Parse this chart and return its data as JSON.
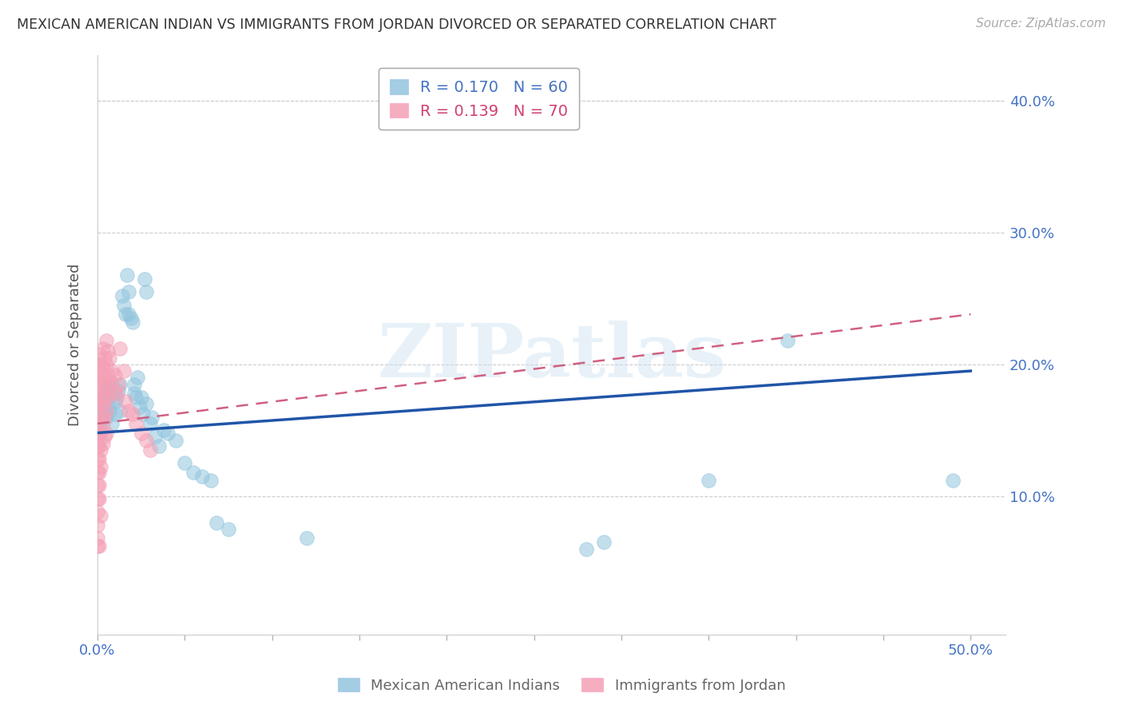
{
  "title": "MEXICAN AMERICAN INDIAN VS IMMIGRANTS FROM JORDAN DIVORCED OR SEPARATED CORRELATION CHART",
  "source": "Source: ZipAtlas.com",
  "ylabel": "Divorced or Separated",
  "xlim": [
    0.0,
    0.52
  ],
  "ylim": [
    -0.005,
    0.435
  ],
  "xtick_labels": [
    "0.0%",
    "",
    "",
    "",
    "",
    "",
    "",
    "",
    "",
    "",
    "50.0%"
  ],
  "xtick_vals": [
    0.0,
    0.05,
    0.1,
    0.15,
    0.2,
    0.25,
    0.3,
    0.35,
    0.4,
    0.45,
    0.5
  ],
  "yticks": [
    0.1,
    0.2,
    0.3,
    0.4
  ],
  "legend1_label": "R = 0.170   N = 60",
  "legend2_label": "R = 0.139   N = 70",
  "bottom_legend": [
    "Mexican American Indians",
    "Immigrants from Jordan"
  ],
  "watermark": "ZIPatlas",
  "blue_scatter": [
    [
      0.001,
      0.155
    ],
    [
      0.001,
      0.163
    ],
    [
      0.002,
      0.168
    ],
    [
      0.002,
      0.158
    ],
    [
      0.003,
      0.172
    ],
    [
      0.003,
      0.162
    ],
    [
      0.004,
      0.175
    ],
    [
      0.004,
      0.165
    ],
    [
      0.005,
      0.178
    ],
    [
      0.005,
      0.16
    ],
    [
      0.006,
      0.18
    ],
    [
      0.006,
      0.17
    ],
    [
      0.007,
      0.182
    ],
    [
      0.007,
      0.165
    ],
    [
      0.008,
      0.185
    ],
    [
      0.008,
      0.155
    ],
    [
      0.009,
      0.178
    ],
    [
      0.01,
      0.172
    ],
    [
      0.01,
      0.162
    ],
    [
      0.011,
      0.175
    ],
    [
      0.012,
      0.18
    ],
    [
      0.013,
      0.185
    ],
    [
      0.013,
      0.165
    ],
    [
      0.014,
      0.252
    ],
    [
      0.015,
      0.245
    ],
    [
      0.016,
      0.238
    ],
    [
      0.017,
      0.268
    ],
    [
      0.018,
      0.255
    ],
    [
      0.018,
      0.238
    ],
    [
      0.019,
      0.235
    ],
    [
      0.02,
      0.232
    ],
    [
      0.021,
      0.178
    ],
    [
      0.021,
      0.185
    ],
    [
      0.022,
      0.175
    ],
    [
      0.023,
      0.19
    ],
    [
      0.024,
      0.168
    ],
    [
      0.025,
      0.175
    ],
    [
      0.026,
      0.162
    ],
    [
      0.027,
      0.265
    ],
    [
      0.028,
      0.255
    ],
    [
      0.028,
      0.17
    ],
    [
      0.03,
      0.155
    ],
    [
      0.031,
      0.16
    ],
    [
      0.033,
      0.145
    ],
    [
      0.035,
      0.138
    ],
    [
      0.038,
      0.15
    ],
    [
      0.04,
      0.148
    ],
    [
      0.045,
      0.142
    ],
    [
      0.05,
      0.125
    ],
    [
      0.055,
      0.118
    ],
    [
      0.06,
      0.115
    ],
    [
      0.065,
      0.112
    ],
    [
      0.068,
      0.08
    ],
    [
      0.075,
      0.075
    ],
    [
      0.12,
      0.068
    ],
    [
      0.28,
      0.06
    ],
    [
      0.29,
      0.065
    ],
    [
      0.35,
      0.112
    ],
    [
      0.395,
      0.218
    ],
    [
      0.49,
      0.112
    ]
  ],
  "pink_scatter": [
    [
      0.0,
      0.2
    ],
    [
      0.0,
      0.19
    ],
    [
      0.0,
      0.18
    ],
    [
      0.0,
      0.17
    ],
    [
      0.0,
      0.158
    ],
    [
      0.0,
      0.148
    ],
    [
      0.0,
      0.138
    ],
    [
      0.0,
      0.128
    ],
    [
      0.0,
      0.118
    ],
    [
      0.0,
      0.108
    ],
    [
      0.0,
      0.098
    ],
    [
      0.0,
      0.088
    ],
    [
      0.0,
      0.078
    ],
    [
      0.0,
      0.068
    ],
    [
      0.001,
      0.208
    ],
    [
      0.001,
      0.195
    ],
    [
      0.001,
      0.182
    ],
    [
      0.001,
      0.17
    ],
    [
      0.001,
      0.158
    ],
    [
      0.001,
      0.148
    ],
    [
      0.001,
      0.138
    ],
    [
      0.001,
      0.128
    ],
    [
      0.001,
      0.118
    ],
    [
      0.001,
      0.108
    ],
    [
      0.001,
      0.098
    ],
    [
      0.002,
      0.2
    ],
    [
      0.002,
      0.188
    ],
    [
      0.002,
      0.175
    ],
    [
      0.002,
      0.162
    ],
    [
      0.002,
      0.148
    ],
    [
      0.002,
      0.135
    ],
    [
      0.002,
      0.122
    ],
    [
      0.003,
      0.212
    ],
    [
      0.003,
      0.198
    ],
    [
      0.003,
      0.185
    ],
    [
      0.003,
      0.17
    ],
    [
      0.003,
      0.155
    ],
    [
      0.003,
      0.14
    ],
    [
      0.004,
      0.205
    ],
    [
      0.004,
      0.19
    ],
    [
      0.004,
      0.175
    ],
    [
      0.004,
      0.16
    ],
    [
      0.004,
      0.145
    ],
    [
      0.005,
      0.218
    ],
    [
      0.005,
      0.2
    ],
    [
      0.005,
      0.182
    ],
    [
      0.005,
      0.165
    ],
    [
      0.005,
      0.148
    ],
    [
      0.006,
      0.21
    ],
    [
      0.006,
      0.192
    ],
    [
      0.006,
      0.175
    ],
    [
      0.007,
      0.205
    ],
    [
      0.007,
      0.188
    ],
    [
      0.008,
      0.195
    ],
    [
      0.009,
      0.18
    ],
    [
      0.01,
      0.192
    ],
    [
      0.011,
      0.178
    ],
    [
      0.012,
      0.185
    ],
    [
      0.013,
      0.212
    ],
    [
      0.015,
      0.195
    ],
    [
      0.016,
      0.172
    ],
    [
      0.018,
      0.165
    ],
    [
      0.02,
      0.162
    ],
    [
      0.022,
      0.155
    ],
    [
      0.025,
      0.148
    ],
    [
      0.028,
      0.142
    ],
    [
      0.03,
      0.135
    ],
    [
      0.0,
      0.062
    ],
    [
      0.001,
      0.062
    ],
    [
      0.002,
      0.085
    ]
  ],
  "blue_line_x": [
    0.0,
    0.5
  ],
  "blue_line_y": [
    0.148,
    0.195
  ],
  "pink_line_x": [
    0.0,
    0.5
  ],
  "pink_line_y": [
    0.155,
    0.238
  ],
  "grid_color": "#cccccc",
  "title_color": "#333333",
  "axis_color": "#4472c4",
  "scatter_blue": "#92c5de",
  "scatter_pink": "#f4a0b5",
  "line_blue": "#2055a8",
  "line_pink": "#d06080"
}
